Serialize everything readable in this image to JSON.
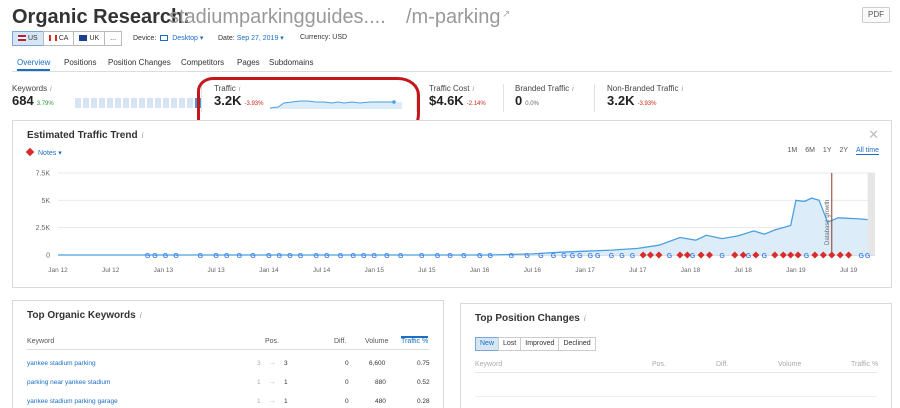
{
  "header": {
    "title_prefix": "Organic Research:",
    "domain": "stadiumparkingguides....",
    "path": "/m-parking",
    "external_icon": "external-link-icon",
    "pdf_label": "PDF"
  },
  "controls": {
    "databases": [
      {
        "flag": "us",
        "label": "US",
        "active": true
      },
      {
        "flag": "ca",
        "label": "CA",
        "active": false
      },
      {
        "flag": "uk",
        "label": "UK",
        "active": false
      }
    ],
    "more_label": "...",
    "device_label": "Device:",
    "device_value": "Desktop",
    "date_label": "Date:",
    "date_value": "Sep 27, 2019",
    "currency_label": "Currency:",
    "currency_value": "USD"
  },
  "tabs": [
    "Overview",
    "Positions",
    "Position Changes",
    "Competitors",
    "Pages",
    "Subdomains"
  ],
  "summary": {
    "keywords": {
      "label": "Keywords",
      "info": "i",
      "value": "684",
      "change": "3.79%",
      "bar_levels": [
        1,
        1,
        1,
        1,
        1,
        1,
        1,
        1,
        1,
        1,
        1,
        1,
        1,
        1,
        1,
        2
      ]
    },
    "traffic": {
      "label": "Traffic",
      "info": "i",
      "value": "3.2K",
      "change": "-3.93%"
    },
    "traffic_cost": {
      "label": "Traffic Cost",
      "info": "i",
      "value": "$4.6K",
      "change": "-2.14%"
    },
    "branded": {
      "label": "Branded Traffic",
      "info": "i",
      "value": "0",
      "change": "0.0%"
    },
    "non_branded": {
      "label": "Non-Branded Traffic",
      "info": "i",
      "value": "3.2K",
      "change": "-3.93%"
    }
  },
  "trend": {
    "title": "Estimated Traffic Trend",
    "info": "i",
    "notes_label": "Notes",
    "ranges": [
      "1M",
      "6M",
      "1Y",
      "2Y",
      "All time"
    ],
    "active_range": "All time",
    "annotation": "Database growth"
  },
  "colors": {
    "accent": "#1a6ec4",
    "line": "#4aa0de",
    "area": "#dcecf9",
    "google_marker": "#4285f4",
    "note_marker": "#d92b2b",
    "negative": "#d0281e",
    "positive": "#2f9a3d",
    "highlight_circle": "#c5171b"
  },
  "chart_data": {
    "type": "area",
    "title": "",
    "xlabel": "",
    "ylabel": "",
    "x_ticks": [
      "Jan 12",
      "Jul 12",
      "Jan 13",
      "Jul 13",
      "Jan 14",
      "Jul 14",
      "Jan 15",
      "Jul 15",
      "Jan 16",
      "Jul 16",
      "Jan 17",
      "Jul 17",
      "Jan 18",
      "Jul 18",
      "Jan 19",
      "Jul 19"
    ],
    "y_ticks": [
      "0",
      "2.5K",
      "5K",
      "7.5K"
    ],
    "ylim": [
      0,
      7500
    ],
    "grid": true,
    "series": [
      {
        "values": [
          {
            "x": 2012.0,
            "y": 0
          },
          {
            "x": 2016.1,
            "y": 0
          },
          {
            "x": 2016.5,
            "y": 100
          },
          {
            "x": 2016.75,
            "y": 250
          },
          {
            "x": 2017.0,
            "y": 350
          },
          {
            "x": 2017.25,
            "y": 450
          },
          {
            "x": 2017.5,
            "y": 600
          },
          {
            "x": 2017.7,
            "y": 900
          },
          {
            "x": 2017.9,
            "y": 1600
          },
          {
            "x": 2018.05,
            "y": 1350
          },
          {
            "x": 2018.15,
            "y": 1800
          },
          {
            "x": 2018.3,
            "y": 1500
          },
          {
            "x": 2018.45,
            "y": 1750
          },
          {
            "x": 2018.6,
            "y": 2200
          },
          {
            "x": 2018.7,
            "y": 1900
          },
          {
            "x": 2018.8,
            "y": 2300
          },
          {
            "x": 2018.95,
            "y": 2700
          },
          {
            "x": 2019.0,
            "y": 5000
          },
          {
            "x": 2019.08,
            "y": 4900
          },
          {
            "x": 2019.15,
            "y": 5200
          },
          {
            "x": 2019.22,
            "y": 5000
          },
          {
            "x": 2019.3,
            "y": 3000
          },
          {
            "x": 2019.4,
            "y": 3400
          },
          {
            "x": 2019.6,
            "y": 3300
          },
          {
            "x": 2019.72,
            "y": 3200
          }
        ]
      }
    ],
    "google_update_x": [
      2012.85,
      2012.92,
      2013.02,
      2013.12,
      2013.35,
      2013.5,
      2013.6,
      2013.72,
      2013.85,
      2014.0,
      2014.1,
      2014.2,
      2014.3,
      2014.45,
      2014.55,
      2014.68,
      2014.8,
      2014.9,
      2015.0,
      2015.12,
      2015.25,
      2015.45,
      2015.6,
      2015.72,
      2015.85,
      2016.0,
      2016.1,
      2016.3,
      2016.45,
      2016.58,
      2016.7,
      2016.8,
      2016.88,
      2016.95,
      2017.05,
      2017.12,
      2017.25,
      2017.35,
      2017.45,
      2017.8,
      2018.02,
      2018.3,
      2018.55,
      2018.7,
      2019.1,
      2019.62,
      2019.68
    ],
    "note_x": [
      2017.55,
      2017.62,
      2017.7,
      2017.9,
      2017.97,
      2018.1,
      2018.18,
      2018.42,
      2018.5,
      2018.62,
      2018.8,
      2018.88,
      2018.95,
      2019.02,
      2019.18,
      2019.26,
      2019.34,
      2019.42,
      2019.5
    ],
    "annotation_x": 2019.34
  },
  "keywords_table": {
    "title": "Top Organic Keywords",
    "info": "i",
    "columns": [
      "Keyword",
      "Pos.",
      "Diff.",
      "Volume",
      "Traffic %"
    ],
    "rows": [
      {
        "keyword": "yankee stadium parking",
        "prev": "3",
        "arrow": "→",
        "pos": "3",
        "diff": "0",
        "volume": "6,600",
        "traffic": "0.75"
      },
      {
        "keyword": "parking near yankee stadium",
        "prev": "1",
        "arrow": "→",
        "pos": "1",
        "diff": "0",
        "volume": "880",
        "traffic": "0.52"
      },
      {
        "keyword": "yankee stadium parking garage",
        "prev": "1",
        "arrow": "→",
        "pos": "1",
        "diff": "0",
        "volume": "480",
        "traffic": "0.28"
      }
    ]
  },
  "position_changes": {
    "title": "Top Position Changes",
    "info": "i",
    "filters": [
      "New",
      "Lost",
      "Improved",
      "Declined"
    ],
    "active_filter": "New",
    "columns": [
      "Keyword",
      "Pos.",
      "Diff.",
      "Volume",
      "Traffic %"
    ]
  }
}
